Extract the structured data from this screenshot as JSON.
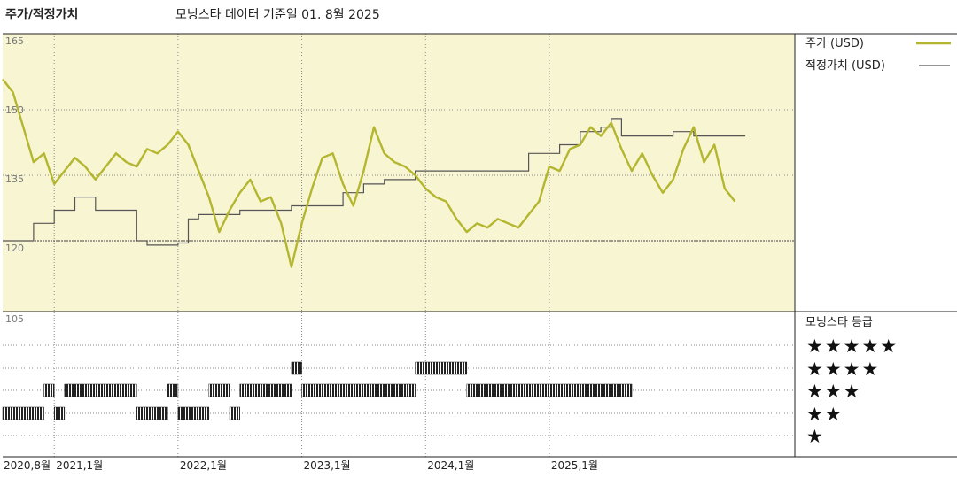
{
  "header": {
    "title": "주가/적정가치",
    "subtitle": "모닝스타 데이터 기준일 01. 8월 2025"
  },
  "legend": {
    "price_label": "주가 (USD)",
    "fair_label": "적정가치 (USD)",
    "rating_title": "모닝스타 등급"
  },
  "colors": {
    "price": "#b3b62e",
    "fair": "#555555",
    "upper_bg": "#f8f5d3",
    "bars": "#222222"
  },
  "chart_data": [
    {
      "type": "line",
      "title": "주가/적정가치",
      "ylim": [
        105,
        165
      ],
      "yticks": [
        "165",
        "150",
        "135",
        "120",
        "105"
      ],
      "x_ticks": [
        "2020,8월",
        "2021,1월",
        "2022,1월",
        "2023,1월",
        "2024,1월",
        "2025,1월"
      ],
      "series": [
        {
          "name": "주가 (USD)",
          "points": [
            [
              "2020-08",
              157
            ],
            [
              "2020-09",
              154
            ],
            [
              "2020-10",
              146
            ],
            [
              "2020-11",
              138
            ],
            [
              "2020-12",
              140
            ],
            [
              "2021-01",
              133
            ],
            [
              "2021-02",
              136
            ],
            [
              "2021-03",
              139
            ],
            [
              "2021-04",
              137
            ],
            [
              "2021-05",
              134
            ],
            [
              "2021-06",
              137
            ],
            [
              "2021-07",
              140
            ],
            [
              "2021-08",
              138
            ],
            [
              "2021-09",
              137
            ],
            [
              "2021-10",
              141
            ],
            [
              "2021-11",
              140
            ],
            [
              "2021-12",
              142
            ],
            [
              "2022-01",
              145
            ],
            [
              "2022-02",
              142
            ],
            [
              "2022-03",
              136
            ],
            [
              "2022-04",
              130
            ],
            [
              "2022-05",
              122
            ],
            [
              "2022-06",
              127
            ],
            [
              "2022-07",
              131
            ],
            [
              "2022-08",
              134
            ],
            [
              "2022-09",
              129
            ],
            [
              "2022-10",
              130
            ],
            [
              "2022-11",
              124
            ],
            [
              "2022-12",
              114
            ],
            [
              "2023-01",
              124
            ],
            [
              "2023-02",
              132
            ],
            [
              "2023-03",
              139
            ],
            [
              "2023-04",
              140
            ],
            [
              "2023-05",
              133
            ],
            [
              "2023-06",
              128
            ],
            [
              "2023-07",
              136
            ],
            [
              "2023-08",
              146
            ],
            [
              "2023-09",
              140
            ],
            [
              "2023-10",
              138
            ],
            [
              "2023-11",
              137
            ],
            [
              "2023-12",
              135
            ],
            [
              "2024-01",
              132
            ],
            [
              "2024-02",
              130
            ],
            [
              "2024-03",
              129
            ],
            [
              "2024-04",
              125
            ],
            [
              "2024-05",
              122
            ],
            [
              "2024-06",
              124
            ],
            [
              "2024-07",
              123
            ],
            [
              "2024-08",
              125
            ],
            [
              "2024-09",
              124
            ],
            [
              "2024-10",
              123
            ],
            [
              "2024-11",
              126
            ],
            [
              "2024-12",
              129
            ],
            [
              "2025-01",
              137
            ],
            [
              "2025-02",
              136
            ],
            [
              "2025-03",
              141
            ],
            [
              "2025-04",
              142
            ],
            [
              "2025-05",
              146
            ],
            [
              "2025-06",
              144
            ],
            [
              "2025-07",
              147
            ],
            [
              "2025-08",
              141
            ],
            [
              "2025-09",
              136
            ],
            [
              "2025-10",
              140
            ],
            [
              "2025-11",
              135
            ],
            [
              "2025-12",
              131
            ],
            [
              "2026-01",
              134
            ],
            [
              "2026-02",
              141
            ],
            [
              "2026-03",
              146
            ],
            [
              "2026-04",
              138
            ],
            [
              "2026-05",
              142
            ],
            [
              "2026-06",
              132
            ],
            [
              "2026-07",
              129
            ]
          ]
        },
        {
          "name": "적정가치 (USD)",
          "points": [
            [
              "2020-08",
              120
            ],
            [
              "2020-11",
              120
            ],
            [
              "2020-11",
              124
            ],
            [
              "2021-01",
              124
            ],
            [
              "2021-01",
              127
            ],
            [
              "2021-03",
              127
            ],
            [
              "2021-03",
              130
            ],
            [
              "2021-05",
              130
            ],
            [
              "2021-05",
              127
            ],
            [
              "2021-09",
              127
            ],
            [
              "2021-09",
              120
            ],
            [
              "2021-10",
              120
            ],
            [
              "2021-10",
              119
            ],
            [
              "2022-01",
              119
            ],
            [
              "2022-01",
              119.5
            ],
            [
              "2022-02",
              119.5
            ],
            [
              "2022-02",
              125
            ],
            [
              "2022-03",
              125
            ],
            [
              "2022-03",
              126
            ],
            [
              "2022-07",
              126
            ],
            [
              "2022-07",
              127
            ],
            [
              "2022-12",
              127
            ],
            [
              "2022-12",
              128
            ],
            [
              "2023-05",
              128
            ],
            [
              "2023-05",
              131
            ],
            [
              "2023-07",
              131
            ],
            [
              "2023-07",
              133
            ],
            [
              "2023-09",
              133
            ],
            [
              "2023-09",
              134
            ],
            [
              "2023-12",
              134
            ],
            [
              "2023-12",
              136
            ],
            [
              "2024-11",
              136
            ],
            [
              "2024-11",
              140
            ],
            [
              "2025-02",
              140
            ],
            [
              "2025-02",
              142
            ],
            [
              "2025-04",
              142
            ],
            [
              "2025-04",
              145
            ],
            [
              "2025-06",
              145
            ],
            [
              "2025-06",
              146
            ],
            [
              "2025-07",
              146
            ],
            [
              "2025-07",
              148
            ],
            [
              "2025-08",
              148
            ],
            [
              "2025-08",
              144
            ],
            [
              "2026-01",
              144
            ],
            [
              "2026-01",
              145
            ],
            [
              "2026-03",
              145
            ],
            [
              "2026-03",
              144
            ],
            [
              "2026-08",
              144
            ]
          ]
        }
      ]
    },
    {
      "type": "bar",
      "title": "모닝스타 등급",
      "levels": [
        "★★★★★",
        "★★★★",
        "★★★",
        "★★",
        "★"
      ],
      "ratings": [
        {
          "start": "2020-08",
          "end": "2020-12",
          "stars": 2
        },
        {
          "start": "2020-12",
          "end": "2021-01",
          "stars": 3
        },
        {
          "start": "2021-01",
          "end": "2021-02",
          "stars": 2
        },
        {
          "start": "2021-02",
          "end": "2021-09",
          "stars": 3
        },
        {
          "start": "2021-09",
          "end": "2021-12",
          "stars": 2
        },
        {
          "start": "2021-12",
          "end": "2022-01",
          "stars": 3
        },
        {
          "start": "2022-01",
          "end": "2022-04",
          "stars": 2
        },
        {
          "start": "2022-04",
          "end": "2022-06",
          "stars": 3
        },
        {
          "start": "2022-06",
          "end": "2022-07",
          "stars": 2
        },
        {
          "start": "2022-07",
          "end": "2022-12",
          "stars": 3
        },
        {
          "start": "2022-12",
          "end": "2023-01",
          "stars": 4
        },
        {
          "start": "2023-01",
          "end": "2023-12",
          "stars": 3
        },
        {
          "start": "2023-12",
          "end": "2024-05",
          "stars": 4
        },
        {
          "start": "2024-05",
          "end": "2025-09",
          "stars": 3
        }
      ]
    }
  ]
}
